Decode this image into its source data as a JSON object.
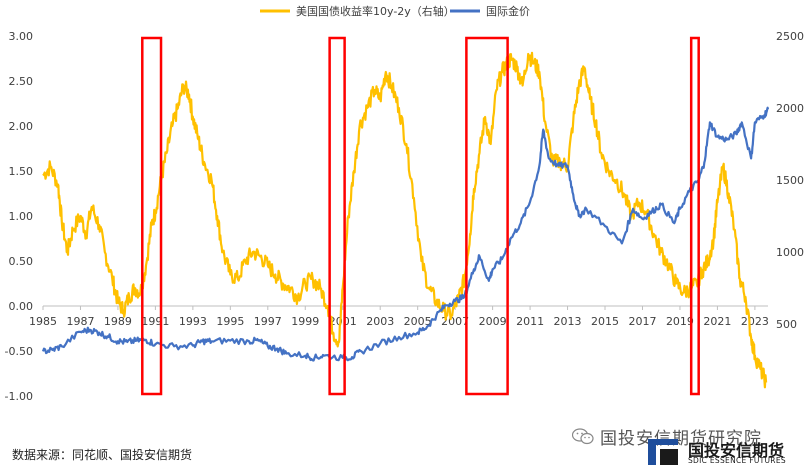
{
  "chart_data": {
    "type": "line",
    "title": "",
    "legend": {
      "placement": "top-center",
      "entries": [
        "美国国债收益率10y-2y（右轴）",
        "国际金价"
      ]
    },
    "x_ticks": [
      "1985",
      "1987",
      "1989",
      "1991",
      "1993",
      "1995",
      "1997",
      "1999",
      "2001",
      "2003",
      "2005",
      "2007",
      "2009",
      "2011",
      "2013",
      "2015",
      "2017",
      "2019",
      "2021",
      "2023"
    ],
    "xlim": [
      1985,
      2023.7
    ],
    "left_axis": {
      "ticks": [
        "3.00",
        "2.50",
        "2.00",
        "1.50",
        "1.00",
        "0.50",
        "0.00",
        "-0.50",
        "-1.00"
      ],
      "ylim": [
        -1.0,
        3.0
      ]
    },
    "right_axis": {
      "ticks": [
        "2500",
        "2000",
        "1500",
        "1000",
        "500"
      ],
      "ylim": [
        0,
        2500
      ]
    },
    "series": [
      {
        "name": "美国国债收益率10y-2y（右轴）",
        "axis": "left",
        "color": "#FFC000",
        "x": [
          1985.0,
          1985.4,
          1985.8,
          1986.0,
          1986.3,
          1986.6,
          1987.0,
          1987.3,
          1987.6,
          1988.0,
          1988.3,
          1988.7,
          1989.0,
          1989.3,
          1989.6,
          1989.9,
          1990.2,
          1990.5,
          1990.8,
          1991.0,
          1991.3,
          1991.6,
          1991.9,
          1992.2,
          1992.5,
          1992.8,
          1993.0,
          1993.3,
          1993.6,
          1994.0,
          1994.3,
          1994.6,
          1995.0,
          1995.4,
          1995.8,
          1996.2,
          1996.6,
          1997.0,
          1997.4,
          1997.8,
          1998.2,
          1998.6,
          1999.0,
          1999.4,
          1999.8,
          2000.2,
          2000.5,
          2000.8,
          2001.0,
          2001.3,
          2001.6,
          2001.9,
          2002.3,
          2002.7,
          2003.0,
          2003.3,
          2003.6,
          2004.0,
          2004.4,
          2004.8,
          2005.2,
          2005.6,
          2006.0,
          2006.4,
          2006.8,
          2007.2,
          2007.5,
          2007.8,
          2008.0,
          2008.3,
          2008.6,
          2008.9,
          2009.2,
          2009.5,
          2009.8,
          2010.0,
          2010.3,
          2010.6,
          2010.9,
          2011.2,
          2011.5,
          2011.8,
          2012.2,
          2012.6,
          2013.0,
          2013.3,
          2013.6,
          2013.9,
          2014.2,
          2014.5,
          2014.8,
          2015.2,
          2015.6,
          2016.0,
          2016.4,
          2016.8,
          2017.2,
          2017.6,
          2018.0,
          2018.4,
          2018.8,
          2019.2,
          2019.6,
          2019.9,
          2020.2,
          2020.5,
          2020.8,
          2021.0,
          2021.3,
          2021.6,
          2021.9,
          2022.2,
          2022.5,
          2022.8,
          2023.0,
          2023.3,
          2023.6
        ],
        "values": [
          1.45,
          1.55,
          1.35,
          0.95,
          0.6,
          0.85,
          1.0,
          0.8,
          1.1,
          0.9,
          0.6,
          0.3,
          0.05,
          -0.05,
          0.1,
          0.2,
          0.15,
          0.45,
          0.9,
          1.05,
          1.4,
          1.7,
          2.0,
          2.2,
          2.45,
          2.35,
          2.1,
          1.85,
          1.6,
          1.4,
          1.0,
          0.6,
          0.35,
          0.3,
          0.5,
          0.6,
          0.55,
          0.45,
          0.35,
          0.25,
          0.2,
          0.1,
          0.25,
          0.3,
          0.2,
          0.0,
          -0.3,
          -0.4,
          0.2,
          1.0,
          1.5,
          2.0,
          2.2,
          2.4,
          2.3,
          2.6,
          2.45,
          2.2,
          1.8,
          1.2,
          0.5,
          0.2,
          0.05,
          -0.05,
          -0.1,
          0.1,
          0.3,
          0.8,
          1.3,
          1.7,
          2.1,
          1.8,
          2.4,
          2.6,
          2.7,
          2.75,
          2.65,
          2.45,
          2.8,
          2.7,
          2.6,
          2.05,
          1.6,
          1.6,
          1.55,
          2.05,
          2.45,
          2.65,
          2.3,
          2.05,
          1.7,
          1.5,
          1.4,
          1.25,
          1.0,
          1.15,
          1.05,
          0.8,
          0.6,
          0.45,
          0.25,
          0.15,
          0.2,
          0.25,
          0.4,
          0.5,
          0.75,
          1.15,
          1.55,
          1.25,
          0.85,
          0.3,
          0.1,
          -0.35,
          -0.55,
          -0.7,
          -0.85
        ]
      },
      {
        "name": "国际金价",
        "axis": "right",
        "color": "#4472C4",
        "x": [
          1985.0,
          1985.5,
          1986.0,
          1987.0,
          1987.5,
          1988.0,
          1988.5,
          1989.0,
          1989.5,
          1990.0,
          1990.5,
          1991.0,
          1992.0,
          1993.0,
          1993.5,
          1994.0,
          1995.0,
          1996.0,
          1996.5,
          1997.0,
          1997.5,
          1998.0,
          1999.0,
          1999.5,
          2000.0,
          2001.0,
          2001.5,
          2002.0,
          2003.0,
          2004.0,
          2005.0,
          2005.5,
          2006.0,
          2006.5,
          2007.0,
          2007.5,
          2008.0,
          2008.3,
          2008.8,
          2009.0,
          2009.5,
          2010.0,
          2010.5,
          2011.0,
          2011.5,
          2011.7,
          2012.0,
          2012.5,
          2013.0,
          2013.3,
          2013.6,
          2014.0,
          2015.0,
          2015.9,
          2016.5,
          2017.0,
          2017.5,
          2018.0,
          2018.7,
          2019.0,
          2019.5,
          2020.0,
          2020.3,
          2020.6,
          2021.0,
          2021.5,
          2022.0,
          2022.3,
          2022.8,
          2023.0,
          2023.5,
          2023.7
        ],
        "values": [
          310,
          320,
          345,
          445,
          460,
          440,
          410,
          380,
          375,
          385,
          390,
          360,
          345,
          350,
          380,
          380,
          385,
          380,
          385,
          345,
          330,
          295,
          280,
          265,
          280,
          265,
          270,
          310,
          365,
          410,
          440,
          480,
          560,
          630,
          660,
          690,
          880,
          970,
          800,
          880,
          950,
          1100,
          1200,
          1350,
          1600,
          1850,
          1650,
          1600,
          1600,
          1400,
          1250,
          1300,
          1180,
          1060,
          1300,
          1230,
          1280,
          1330,
          1200,
          1300,
          1420,
          1500,
          1620,
          1900,
          1800,
          1780,
          1820,
          1900,
          1650,
          1900,
          1950,
          1990
        ]
      }
    ],
    "highlights": [
      {
        "x_start": 1990.3,
        "x_end": 1991.3,
        "color": "#FF0000"
      },
      {
        "x_start": 2000.3,
        "x_end": 2001.1,
        "color": "#FF0000"
      },
      {
        "x_start": 2007.6,
        "x_end": 2009.8,
        "color": "#FF0000"
      },
      {
        "x_start": 2019.6,
        "x_end": 2020.0,
        "color": "#FF0000"
      }
    ],
    "grid": false
  },
  "footer": {
    "source_text": "数据来源：同花顺、国投安信期货",
    "watermark_text": "国投安信期货研究院",
    "logo_cn": "国投安信期货",
    "logo_en": "SDIC ESSENCE FUTURES"
  }
}
